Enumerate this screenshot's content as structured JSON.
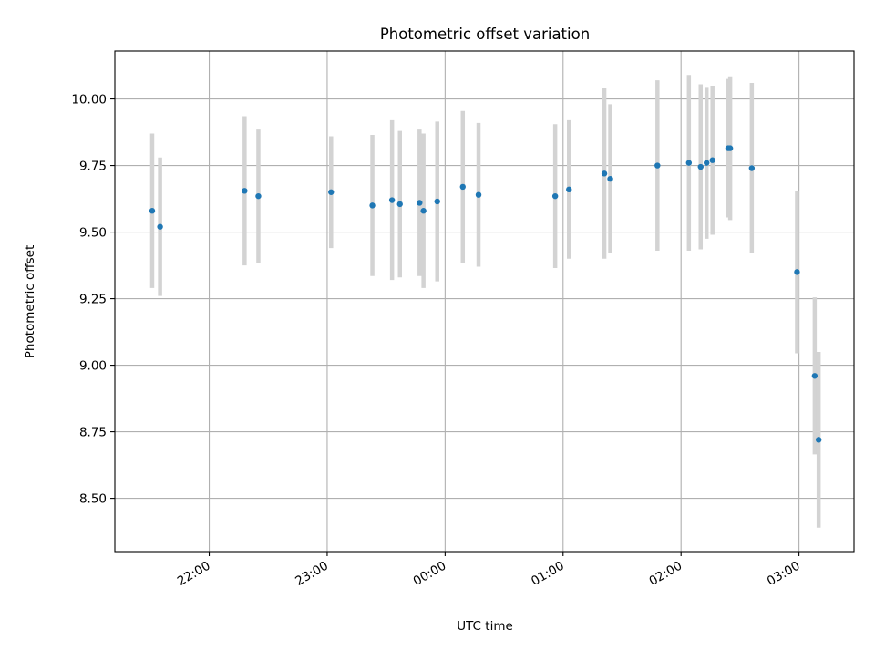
{
  "chart_data": {
    "type": "scatter",
    "title": "Photometric offset variation",
    "xlabel": "UTC time",
    "ylabel": "Photometric offset",
    "x_unit": "UTC time (date axis)",
    "xlim": [
      "21:12",
      "03:28"
    ],
    "ylim": [
      8.3,
      10.18
    ],
    "grid": true,
    "x_ticks": [
      "22:00",
      "23:00",
      "00:00",
      "01:00",
      "02:00",
      "03:00"
    ],
    "y_ticks": [
      "8.50",
      "8.75",
      "9.00",
      "9.25",
      "9.50",
      "9.75",
      "10.00"
    ],
    "colors": {
      "points": "#1f77b4",
      "errorbars": "#d3d3d3",
      "grid": "#b0b0b0"
    },
    "points": [
      {
        "x": "21:31",
        "y": 9.58,
        "yerr": 0.29
      },
      {
        "x": "21:35",
        "y": 9.52,
        "yerr": 0.26
      },
      {
        "x": "22:18",
        "y": 9.655,
        "yerr": 0.28
      },
      {
        "x": "22:25",
        "y": 9.635,
        "yerr": 0.25
      },
      {
        "x": "23:02",
        "y": 9.65,
        "yerr": 0.21
      },
      {
        "x": "23:23",
        "y": 9.6,
        "yerr": 0.265
      },
      {
        "x": "23:33",
        "y": 9.62,
        "yerr": 0.3
      },
      {
        "x": "23:37",
        "y": 9.605,
        "yerr": 0.275
      },
      {
        "x": "23:47",
        "y": 9.61,
        "yerr": 0.275
      },
      {
        "x": "23:49",
        "y": 9.58,
        "yerr": 0.29
      },
      {
        "x": "23:56",
        "y": 9.615,
        "yerr": 0.3
      },
      {
        "x": "00:09",
        "y": 9.67,
        "yerr": 0.285
      },
      {
        "x": "00:17",
        "y": 9.64,
        "yerr": 0.27
      },
      {
        "x": "00:56",
        "y": 9.635,
        "yerr": 0.27
      },
      {
        "x": "01:03",
        "y": 9.66,
        "yerr": 0.26
      },
      {
        "x": "01:21",
        "y": 9.72,
        "yerr": 0.32
      },
      {
        "x": "01:24",
        "y": 9.7,
        "yerr": 0.28
      },
      {
        "x": "01:48",
        "y": 9.75,
        "yerr": 0.32
      },
      {
        "x": "02:04",
        "y": 9.76,
        "yerr": 0.33
      },
      {
        "x": "02:10",
        "y": 9.745,
        "yerr": 0.31
      },
      {
        "x": "02:13",
        "y": 9.76,
        "yerr": 0.285
      },
      {
        "x": "02:16",
        "y": 9.77,
        "yerr": 0.28
      },
      {
        "x": "02:24",
        "y": 9.815,
        "yerr": 0.26
      },
      {
        "x": "02:25",
        "y": 9.815,
        "yerr": 0.27
      },
      {
        "x": "02:36",
        "y": 9.74,
        "yerr": 0.32
      },
      {
        "x": "02:59",
        "y": 9.35,
        "yerr": 0.305
      },
      {
        "x": "03:08",
        "y": 8.96,
        "yerr": 0.295
      },
      {
        "x": "03:10",
        "y": 8.72,
        "yerr": 0.33
      }
    ]
  }
}
